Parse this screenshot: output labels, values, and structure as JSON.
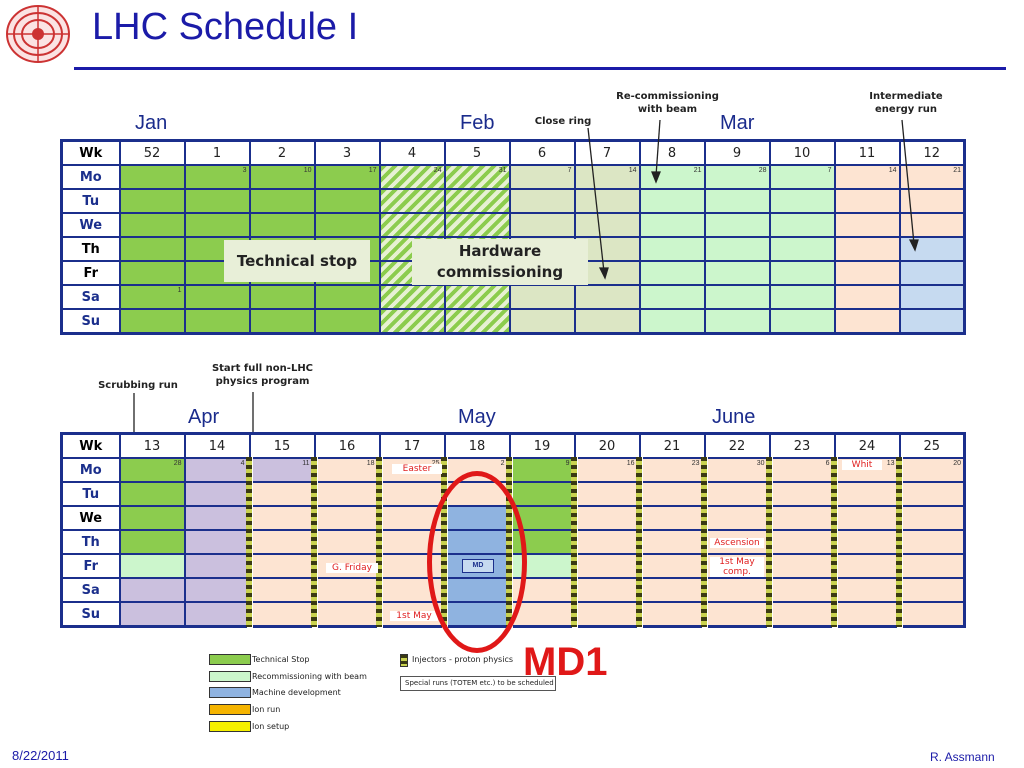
{
  "slide": {
    "title": "LHC Schedule I",
    "date": "8/22/2011",
    "author": "R. Assmann",
    "highlight_label": "MD1"
  },
  "top": {
    "months": [
      "Jan",
      "Feb",
      "Mar"
    ],
    "annotations": {
      "close_ring": "Close ring",
      "recommissioning": "Re-commissioning\nwith  beam",
      "intermediate": "Intermediate\nenergy run"
    },
    "wk_label": "Wk",
    "weeks": [
      "52",
      "1",
      "2",
      "3",
      "4",
      "5",
      "6",
      "7",
      "8",
      "9",
      "10",
      "11",
      "12"
    ],
    "day_labels": [
      "Mo",
      "Tu",
      "We",
      "Th",
      "Fr",
      "Sa",
      "Su"
    ],
    "mo_dates": [
      "",
      "3",
      "10",
      "17",
      "24",
      "31",
      "7",
      "14",
      "21",
      "28",
      "7",
      "14",
      "21"
    ],
    "sa_first": "1",
    "technical_stop": "Technical stop",
    "hardware_commissioning": "Hardware\ncommissioning"
  },
  "bottom": {
    "months": [
      "Apr",
      "May",
      "June"
    ],
    "annotations": {
      "scrubbing": "Scrubbing run",
      "start_physics": "Start  full non-LHC\nphysics program"
    },
    "wk_label": "Wk",
    "weeks": [
      "13",
      "14",
      "15",
      "16",
      "17",
      "18",
      "19",
      "20",
      "21",
      "22",
      "23",
      "24",
      "25"
    ],
    "day_labels": [
      "Mo",
      "Tu",
      "We",
      "Th",
      "Fr",
      "Sa",
      "Su"
    ],
    "mo_dates": [
      "28",
      "4",
      "11",
      "18",
      "25",
      "2",
      "9",
      "16",
      "23",
      "30",
      "6",
      "13",
      "20"
    ],
    "events": {
      "easter": "Easter",
      "g_friday": "G. Friday",
      "first_may": "1st May",
      "ascension": "Ascension",
      "first_may_comp": "1st May\ncomp.",
      "whit": "Whit",
      "md": "MD"
    }
  },
  "legend": [
    {
      "label": "Technical Stop",
      "color": "#8ccc4e"
    },
    {
      "label": "Recommissioning with beam",
      "color": "#ccf6cc"
    },
    {
      "label": "Machine development",
      "color": "#8fb3e0"
    },
    {
      "label": "Ion run",
      "color": "#f5b400"
    },
    {
      "label": "Ion setup",
      "color": "#f5f000"
    }
  ],
  "legend2": {
    "injectors": "Injectors - proton physics",
    "special": "Special runs (TOTEM etc.) to be scheduled"
  }
}
